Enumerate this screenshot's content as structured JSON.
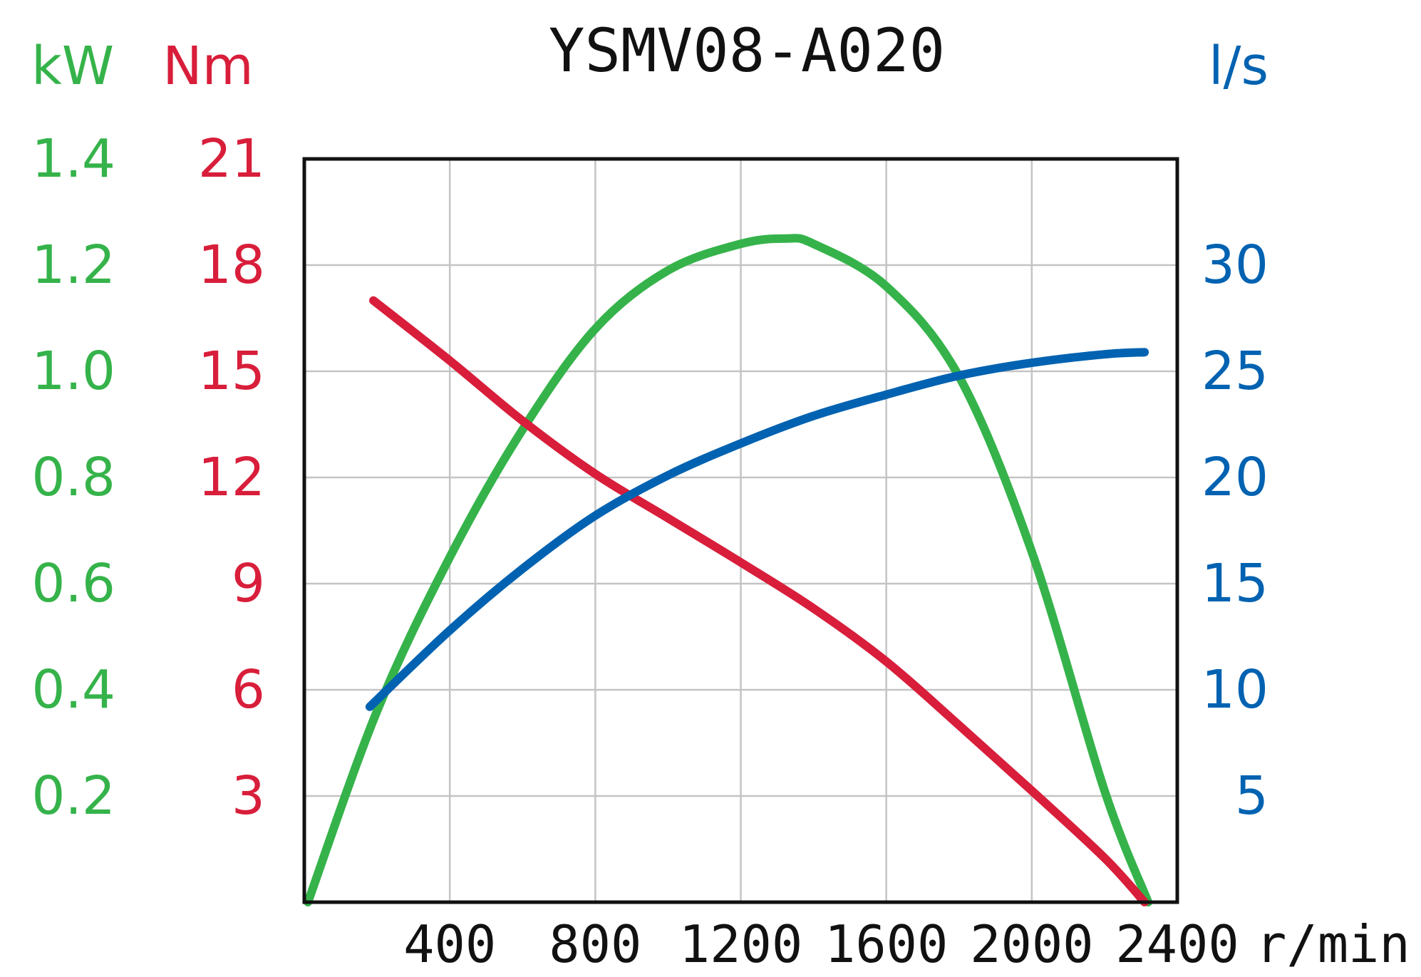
{
  "chart_data": {
    "type": "line",
    "title": "YSMV08-A020",
    "x_axis": {
      "unit": "r/min",
      "range": [
        0,
        2400
      ],
      "ticks": [
        400,
        800,
        1200,
        1600,
        2000,
        2400
      ]
    },
    "y_axes": [
      {
        "id": "power",
        "unit": "kW",
        "color": "#35b34a",
        "range": [
          0,
          1.4
        ],
        "ticks": [
          "0.2",
          "0.4",
          "0.6",
          "0.8",
          "1.0",
          "1.2",
          "1.4"
        ]
      },
      {
        "id": "torque",
        "unit": "Nm",
        "color": "#d81e3a",
        "range": [
          0,
          21
        ],
        "ticks": [
          "3",
          "6",
          "9",
          "12",
          "15",
          "18",
          "21"
        ]
      },
      {
        "id": "flow",
        "unit": "l/s",
        "color": "#0062b1",
        "range": [
          0,
          35
        ],
        "ticks": [
          "5",
          "10",
          "15",
          "20",
          "25",
          "30"
        ]
      }
    ],
    "grid": true,
    "series": [
      {
        "axis": "power",
        "color": "#35b34a",
        "x": [
          10,
          200,
          400,
          600,
          800,
          1000,
          1200,
          1325,
          1400,
          1600,
          1800,
          2000,
          2200,
          2320
        ],
        "y": [
          0.0,
          0.36,
          0.65,
          0.89,
          1.08,
          1.19,
          1.24,
          1.25,
          1.24,
          1.16,
          0.99,
          0.66,
          0.21,
          0.0
        ]
      },
      {
        "axis": "torque",
        "color": "#d81e3a",
        "x": [
          190,
          400,
          600,
          800,
          1000,
          1200,
          1400,
          1600,
          1800,
          2000,
          2200,
          2310
        ],
        "y": [
          17.0,
          15.3,
          13.6,
          12.1,
          10.85,
          9.6,
          8.3,
          6.8,
          5.0,
          3.15,
          1.25,
          0.0
        ]
      },
      {
        "axis": "flow",
        "color": "#0062b1",
        "x": [
          180,
          400,
          600,
          800,
          1000,
          1200,
          1400,
          1600,
          1800,
          2000,
          2200,
          2310
        ],
        "y": [
          9.2,
          12.8,
          15.7,
          18.2,
          20.1,
          21.6,
          22.9,
          23.9,
          24.8,
          25.4,
          25.8,
          25.9
        ]
      }
    ]
  }
}
